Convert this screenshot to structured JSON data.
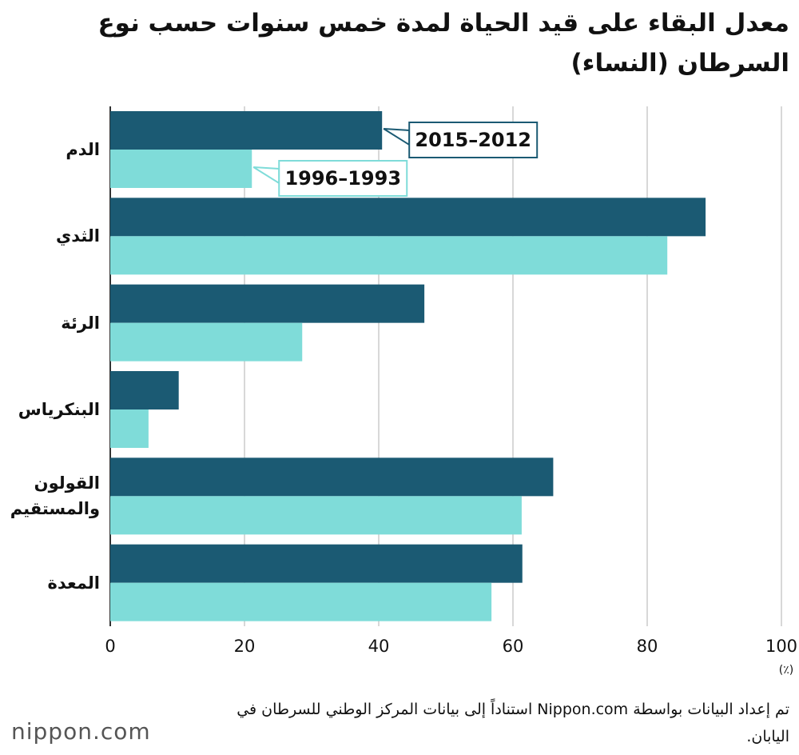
{
  "chart_data": {
    "type": "hbar",
    "title": "معدل البقاء على قيد الحياة لمدة خمس سنوات حسب نوع السرطان (النساء)",
    "categories": [
      "الدم",
      "الثدي",
      "الرئة",
      "البنكرياس",
      "القولون والمستقيم",
      "المعدة"
    ],
    "series": [
      {
        "name": "2015–2012",
        "color": "#1b5a73",
        "values": [
          40.5,
          88.7,
          46.8,
          10.2,
          66.0,
          61.4
        ]
      },
      {
        "name": "1996–1993",
        "color": "#7fdcd9",
        "values": [
          21.1,
          83.0,
          28.6,
          5.7,
          61.3,
          56.8
        ]
      }
    ],
    "xlim": [
      0,
      100
    ],
    "xticks": [
      0,
      20,
      40,
      60,
      80,
      100
    ],
    "x_unit": "(٪)",
    "grid": true,
    "source": "تم إعداد البيانات بواسطة Nippon.com استناداً إلى بيانات المركز الوطني للسرطان في اليابان.",
    "logo": "nippon.com"
  }
}
